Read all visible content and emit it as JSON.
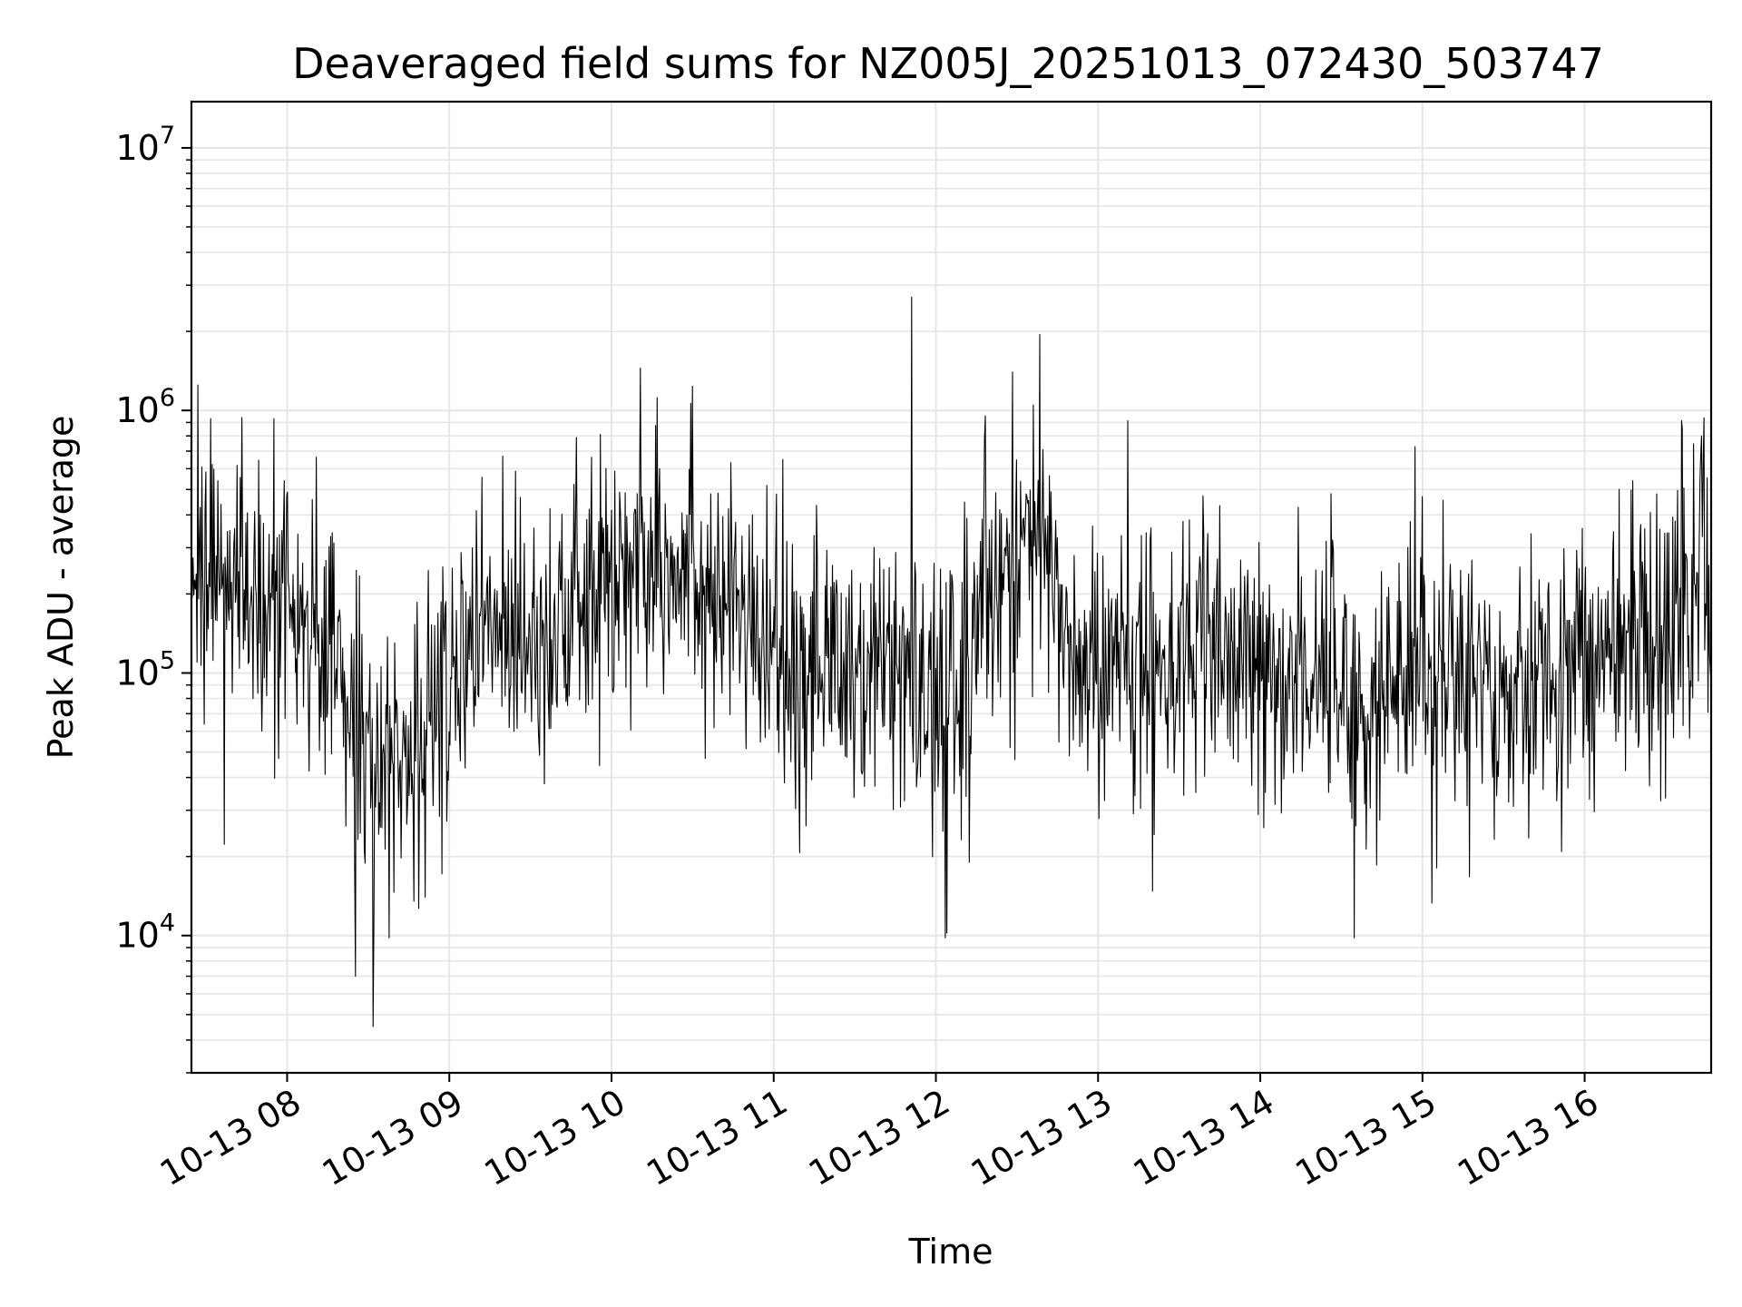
{
  "chart_data": {
    "type": "line",
    "title": "Deaveraged field sums for NZ005J_20251013_072430_503747",
    "xlabel": "Time",
    "ylabel": "Peak ADU - average",
    "x_range_hours": [
      7.41,
      16.78
    ],
    "x_ticks": [
      {
        "hour": 8,
        "label": "10-13 08"
      },
      {
        "hour": 9,
        "label": "10-13 09"
      },
      {
        "hour": 10,
        "label": "10-13 10"
      },
      {
        "hour": 11,
        "label": "10-13 11"
      },
      {
        "hour": 12,
        "label": "10-13 12"
      },
      {
        "hour": 13,
        "label": "10-13 13"
      },
      {
        "hour": 14,
        "label": "10-13 14"
      },
      {
        "hour": 15,
        "label": "10-13 15"
      },
      {
        "hour": 16,
        "label": "10-13 16"
      }
    ],
    "y_scale": "log",
    "ylim": [
      3000,
      15000000
    ],
    "y_ticks": [
      {
        "value": 10000,
        "base": "10",
        "exp": "4"
      },
      {
        "value": 100000,
        "base": "10",
        "exp": "5"
      },
      {
        "value": 1000000,
        "base": "10",
        "exp": "6"
      },
      {
        "value": 10000000,
        "base": "10",
        "exp": "7"
      }
    ],
    "grid": true,
    "line_color": "#000000",
    "grid_color": "#e6e6e6",
    "series": [
      {
        "sample_count": 1900,
        "trend_points": [
          [
            7.41,
            400000
          ],
          [
            7.5,
            250000
          ],
          [
            7.7,
            200000
          ],
          [
            8.0,
            150000
          ],
          [
            8.3,
            110000
          ],
          [
            8.55,
            50000
          ],
          [
            8.75,
            45000
          ],
          [
            8.9,
            70000
          ],
          [
            9.1,
            120000
          ],
          [
            9.4,
            160000
          ],
          [
            9.7,
            150000
          ],
          [
            9.95,
            200000
          ],
          [
            10.2,
            320000
          ],
          [
            10.5,
            280000
          ],
          [
            10.8,
            150000
          ],
          [
            11.0,
            110000
          ],
          [
            11.3,
            110000
          ],
          [
            11.6,
            100000
          ],
          [
            11.85,
            90000
          ],
          [
            12.05,
            70000
          ],
          [
            12.25,
            150000
          ],
          [
            12.5,
            320000
          ],
          [
            12.7,
            250000
          ],
          [
            12.85,
            110000
          ],
          [
            13.0,
            100000
          ],
          [
            13.5,
            120000
          ],
          [
            14.0,
            95000
          ],
          [
            14.4,
            110000
          ],
          [
            14.65,
            70000
          ],
          [
            14.9,
            110000
          ],
          [
            15.3,
            100000
          ],
          [
            15.6,
            95000
          ],
          [
            15.9,
            110000
          ],
          [
            16.2,
            120000
          ],
          [
            16.5,
            170000
          ],
          [
            16.78,
            200000
          ]
        ],
        "spikes": [
          [
            7.45,
            1250000
          ],
          [
            7.53,
            930000
          ],
          [
            7.72,
            940000
          ],
          [
            7.92,
            930000
          ],
          [
            8.42,
            7000
          ],
          [
            8.53,
            4500
          ],
          [
            8.63,
            9800
          ],
          [
            10.18,
            1450000
          ],
          [
            10.28,
            1120000
          ],
          [
            11.85,
            2700000
          ],
          [
            12.06,
            9800
          ],
          [
            12.47,
            1400000
          ],
          [
            12.6,
            1050000
          ],
          [
            14.58,
            9800
          ],
          [
            16.6,
            850000
          ],
          [
            16.72,
            800000
          ]
        ]
      }
    ]
  }
}
